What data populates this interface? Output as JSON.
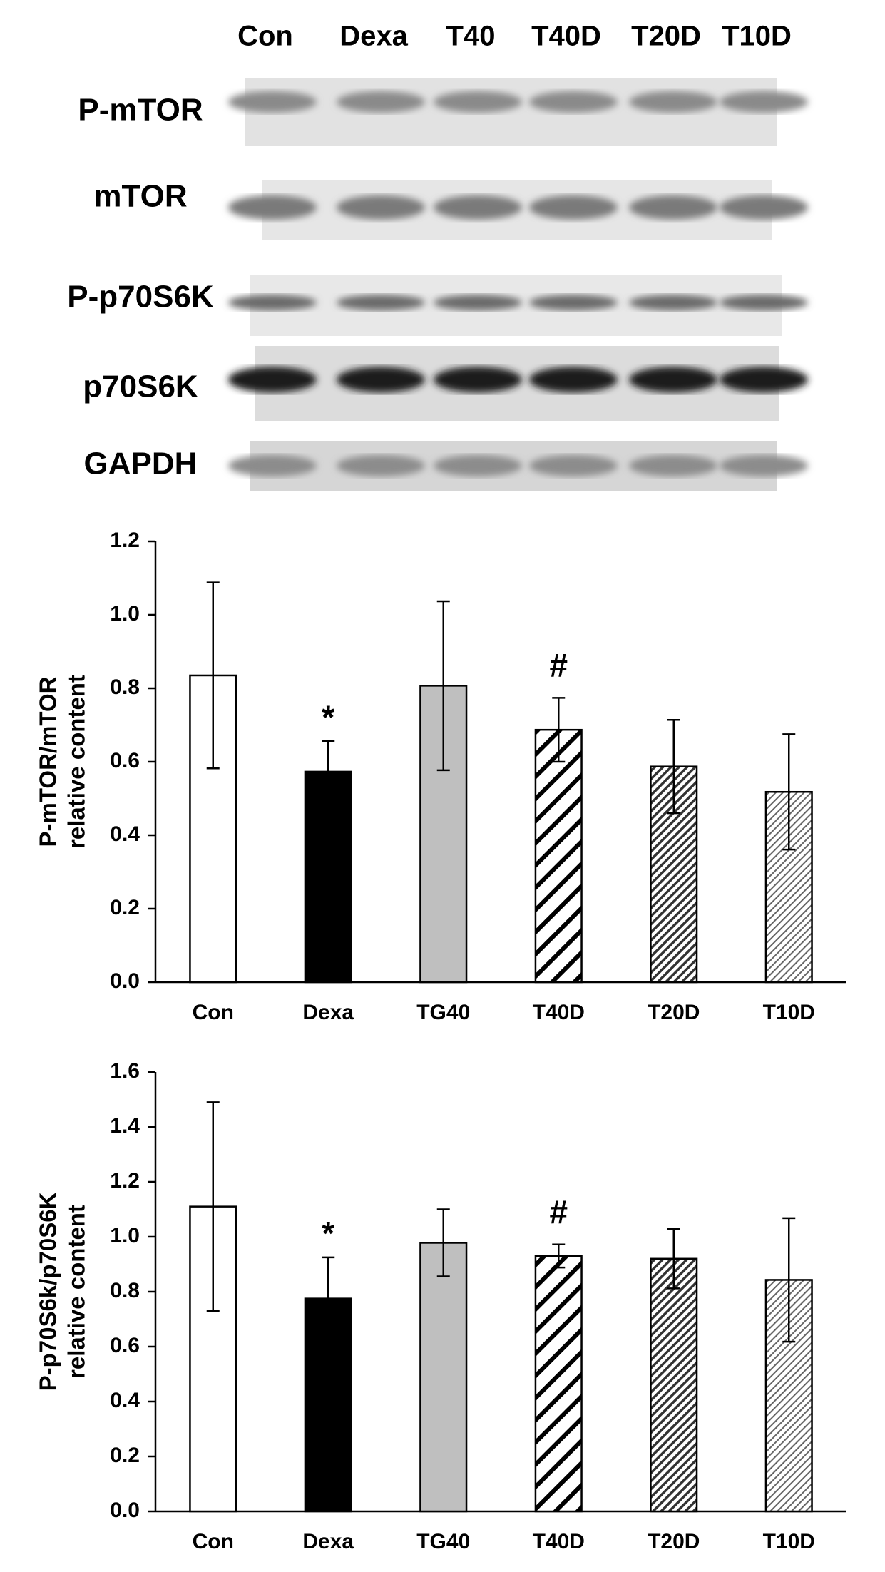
{
  "blot": {
    "lanes": [
      "Con",
      "Dexa",
      "T40",
      "T40D",
      "T20D",
      "T10D"
    ],
    "rows": [
      "P-mTOR",
      "mTOR",
      "P-p70S6K",
      "p70S6K",
      "GAPDH"
    ]
  },
  "chart_data": [
    {
      "type": "bar",
      "ylabel": [
        "P-mTOR/mTOR",
        "relative content"
      ],
      "categories": [
        "Con",
        "Dexa",
        "TG40",
        "T40D",
        "T20D",
        "T10D"
      ],
      "values": [
        0.835,
        0.573,
        0.807,
        0.687,
        0.587,
        0.518
      ],
      "errors": [
        0.253,
        0.083,
        0.23,
        0.087,
        0.127,
        0.157
      ],
      "colors": [
        "#ffffff",
        "#000000",
        "#bfbfbf",
        "#ffffff",
        "#ffffff",
        "#ffffff"
      ],
      "hatch": [
        null,
        null,
        null,
        "wide",
        "dense",
        "fine"
      ],
      "ylim": [
        0,
        1.2
      ],
      "yticks": [
        {
          "value": 0,
          "label": "0.0"
        },
        0.2,
        0.4,
        0.6,
        0.8,
        {
          "value": 1,
          "label": "1.0"
        },
        1.2
      ],
      "annotations": [
        {
          "text": "*",
          "category": "Dexa"
        },
        {
          "text": "#",
          "category": "T40D"
        }
      ]
    },
    {
      "type": "bar",
      "ylabel": [
        "P-p70S6k/p70S6K",
        "relative content"
      ],
      "categories": [
        "Con",
        "Dexa",
        "TG40",
        "T40D",
        "T20D",
        "T10D"
      ],
      "values": [
        1.11,
        0.775,
        0.978,
        0.93,
        0.92,
        0.843
      ],
      "errors": [
        0.38,
        0.15,
        0.122,
        0.042,
        0.108,
        0.225
      ],
      "colors": [
        "#ffffff",
        "#000000",
        "#bfbfbf",
        "#ffffff",
        "#ffffff",
        "#ffffff"
      ],
      "hatch": [
        null,
        null,
        null,
        "wide",
        "dense",
        "fine"
      ],
      "ylim": [
        0,
        1.6
      ],
      "yticks": [
        {
          "value": 0,
          "label": "0.0"
        },
        0.2,
        0.4,
        0.6,
        0.8,
        {
          "value": 1,
          "label": "1.0"
        },
        1.2,
        1.4,
        1.6
      ],
      "annotations": [
        {
          "text": "*",
          "category": "Dexa"
        },
        {
          "text": "#",
          "category": "T40D"
        }
      ]
    }
  ]
}
